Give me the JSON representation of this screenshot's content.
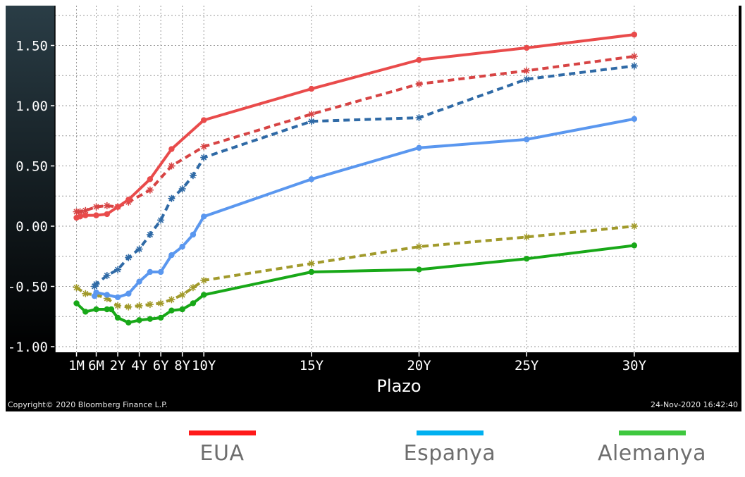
{
  "colors": {
    "eua": "#e94b4b",
    "espanya": "#5a97ef",
    "alemanya": "#18a818",
    "eua_prev": "#d74444",
    "espanya_prev": "#2f6aa6",
    "alemanya_prev": "#a19a2b",
    "legend_eua": "#ff1a1a",
    "legend_espanya": "#00b0f0",
    "legend_alemanya": "#3fc83f"
  },
  "footer": {
    "copyright": "Copyright© 2020 Bloomberg Finance L.P.",
    "timestamp": "24-Nov-2020 16:42:40"
  },
  "legend": [
    {
      "label": "EUA",
      "color_key": "legend_eua"
    },
    {
      "label": "Espanya",
      "color_key": "legend_espanya"
    },
    {
      "label": "Alemanya",
      "color_key": "legend_alemanya"
    }
  ],
  "chart_data": {
    "type": "line",
    "title": "",
    "xlabel": "Plazo",
    "ylabel": "",
    "xlim": [
      0,
      30
    ],
    "ylim": [
      -1.05,
      1.8
    ],
    "x_ticks": [
      {
        "label": "1M",
        "x": 0.083
      },
      {
        "label": "6M",
        "x": 1.0
      },
      {
        "label": "2Y",
        "x": 2.0
      },
      {
        "label": "4Y",
        "x": 3.0
      },
      {
        "label": "6Y",
        "x": 4.0
      },
      {
        "label": "8Y",
        "x": 5.0
      },
      {
        "label": "10Y",
        "x": 6.0
      },
      {
        "label": "15Y",
        "x": 11.0
      },
      {
        "label": "20Y",
        "x": 16.0
      },
      {
        "label": "25Y",
        "x": 21.0
      },
      {
        "label": "30Y",
        "x": 26.0
      }
    ],
    "y_ticks": [
      -1.0,
      -0.5,
      0.0,
      0.5,
      1.0,
      1.5
    ],
    "y_tick_labels": [
      "-1.00",
      "-0.50",
      "0.00",
      "0.50",
      "1.00",
      "1.50"
    ],
    "grid": true,
    "legend_position": "below",
    "series": [
      {
        "color_key": "eua",
        "style": "solid",
        "marker": "dot",
        "points": [
          [
            0.083,
            0.07
          ],
          [
            0.25,
            0.08
          ],
          [
            0.5,
            0.09
          ],
          [
            1.0,
            0.09
          ],
          [
            1.5,
            0.1
          ],
          [
            2.0,
            0.16
          ],
          [
            2.5,
            0.22
          ],
          [
            3.5,
            0.39
          ],
          [
            4.5,
            0.64
          ],
          [
            6.0,
            0.88
          ],
          [
            11.0,
            1.14
          ],
          [
            16.0,
            1.38
          ],
          [
            21.0,
            1.48
          ],
          [
            26.0,
            1.59
          ]
        ]
      },
      {
        "color_key": "eua_prev",
        "style": "dashed",
        "marker": "star",
        "points": [
          [
            0.083,
            0.12
          ],
          [
            0.25,
            0.12
          ],
          [
            0.5,
            0.13
          ],
          [
            1.0,
            0.16
          ],
          [
            1.5,
            0.17
          ],
          [
            2.0,
            0.16
          ],
          [
            2.5,
            0.2
          ],
          [
            3.5,
            0.3
          ],
          [
            4.5,
            0.5
          ],
          [
            6.0,
            0.66
          ],
          [
            11.0,
            0.93
          ],
          [
            16.0,
            1.18
          ],
          [
            21.0,
            1.29
          ],
          [
            26.0,
            1.41
          ]
        ]
      },
      {
        "color_key": "espanya",
        "style": "solid",
        "marker": "dot",
        "points": [
          [
            0.92,
            -0.58
          ],
          [
            1.0,
            -0.55
          ],
          [
            1.5,
            -0.57
          ],
          [
            2.0,
            -0.59
          ],
          [
            2.5,
            -0.56
          ],
          [
            3.0,
            -0.46
          ],
          [
            3.5,
            -0.38
          ],
          [
            4.0,
            -0.38
          ],
          [
            4.5,
            -0.24
          ],
          [
            5.0,
            -0.17
          ],
          [
            5.5,
            -0.07
          ],
          [
            6.0,
            0.08
          ],
          [
            11.0,
            0.39
          ],
          [
            16.0,
            0.65
          ],
          [
            21.0,
            0.72
          ],
          [
            26.0,
            0.89
          ]
        ]
      },
      {
        "color_key": "espanya_prev",
        "style": "dashed",
        "marker": "star",
        "points": [
          [
            0.92,
            -0.5
          ],
          [
            1.0,
            -0.48
          ],
          [
            1.5,
            -0.41
          ],
          [
            2.0,
            -0.36
          ],
          [
            2.5,
            -0.26
          ],
          [
            3.0,
            -0.19
          ],
          [
            3.5,
            -0.07
          ],
          [
            4.0,
            0.05
          ],
          [
            4.5,
            0.23
          ],
          [
            5.0,
            0.31
          ],
          [
            5.5,
            0.42
          ],
          [
            6.0,
            0.57
          ],
          [
            11.0,
            0.87
          ],
          [
            16.0,
            0.9
          ],
          [
            21.0,
            1.22
          ],
          [
            26.0,
            1.33
          ]
        ]
      },
      {
        "color_key": "alemanya",
        "style": "solid",
        "marker": "dot",
        "points": [
          [
            0.083,
            -0.64
          ],
          [
            0.5,
            -0.71
          ],
          [
            1.0,
            -0.69
          ],
          [
            1.5,
            -0.69
          ],
          [
            1.7,
            -0.69
          ],
          [
            2.0,
            -0.76
          ],
          [
            2.5,
            -0.8
          ],
          [
            3.0,
            -0.78
          ],
          [
            3.5,
            -0.77
          ],
          [
            4.0,
            -0.76
          ],
          [
            4.5,
            -0.7
          ],
          [
            5.0,
            -0.69
          ],
          [
            5.5,
            -0.64
          ],
          [
            6.0,
            -0.57
          ],
          [
            11.0,
            -0.38
          ],
          [
            16.0,
            -0.36
          ],
          [
            21.0,
            -0.27
          ],
          [
            26.0,
            -0.16
          ]
        ]
      },
      {
        "color_key": "alemanya_prev",
        "style": "dashed",
        "marker": "star",
        "points": [
          [
            0.083,
            -0.51
          ],
          [
            0.5,
            -0.56
          ],
          [
            1.0,
            -0.57
          ],
          [
            1.5,
            -0.6
          ],
          [
            2.0,
            -0.66
          ],
          [
            2.5,
            -0.67
          ],
          [
            3.0,
            -0.66
          ],
          [
            3.5,
            -0.65
          ],
          [
            4.0,
            -0.64
          ],
          [
            4.5,
            -0.61
          ],
          [
            5.0,
            -0.57
          ],
          [
            5.5,
            -0.51
          ],
          [
            6.0,
            -0.45
          ],
          [
            11.0,
            -0.31
          ],
          [
            16.0,
            -0.17
          ],
          [
            21.0,
            -0.09
          ],
          [
            26.0,
            0.0
          ]
        ]
      }
    ]
  }
}
